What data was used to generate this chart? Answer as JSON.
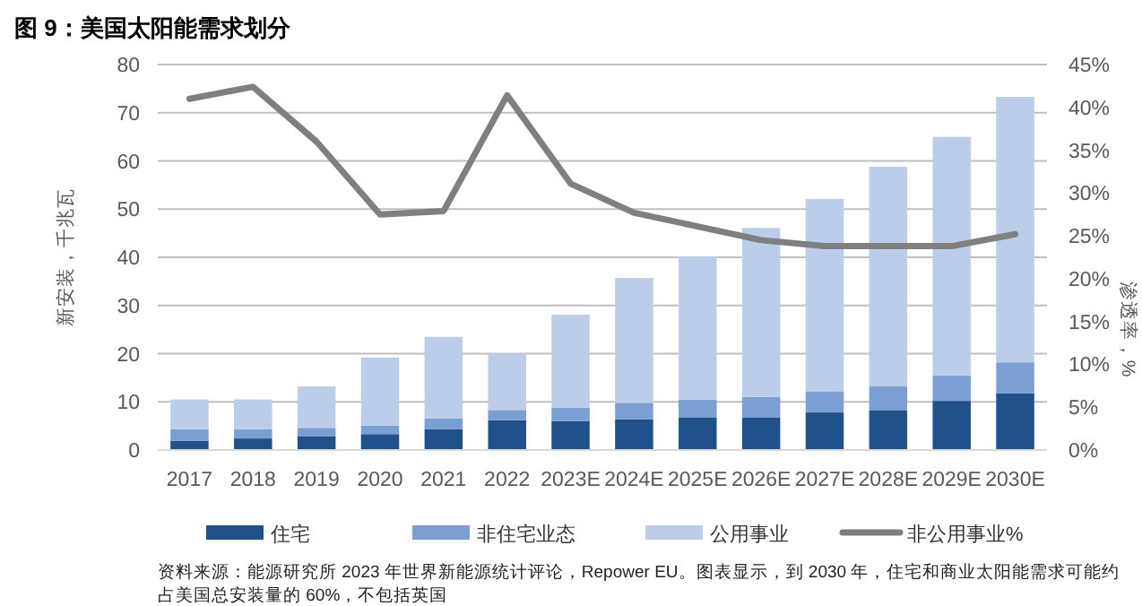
{
  "chart_data": {
    "type": "bar",
    "title": "图 9：美国太阳能需求划分",
    "ylabel": "新安装，千兆瓦",
    "y2label": "渗透率，%",
    "categories": [
      "2017",
      "2018",
      "2019",
      "2020",
      "2021",
      "2022",
      "2023E",
      "2024E",
      "2025E",
      "2026E",
      "2027E",
      "2028E",
      "2029E",
      "2030E"
    ],
    "stacked": true,
    "ylim": [
      0,
      80
    ],
    "yticks": [
      0,
      10,
      20,
      30,
      40,
      50,
      60,
      70,
      80
    ],
    "y2lim": [
      0,
      45
    ],
    "y2ticks": [
      {
        "value": 0,
        "label": "0%"
      },
      {
        "value": 5,
        "label": "5%"
      },
      {
        "value": 10,
        "label": "10%"
      },
      {
        "value": 15,
        "label": "15%"
      },
      {
        "value": 20,
        "label": "20%"
      },
      {
        "value": 25,
        "label": "25%"
      },
      {
        "value": 30,
        "label": "30%"
      },
      {
        "value": 35,
        "label": "35%"
      },
      {
        "value": 40,
        "label": "40%"
      },
      {
        "value": 45,
        "label": "45%"
      }
    ],
    "grid": "y",
    "legend": "bottom",
    "series": [
      {
        "name": "住宅",
        "color": "#21518b",
        "values": [
          1.9,
          2.4,
          2.9,
          3.3,
          4.3,
          6.2,
          6.0,
          6.4,
          6.8,
          6.8,
          7.8,
          8.3,
          10.2,
          11.8
        ]
      },
      {
        "name": "非住宅业态",
        "color": "#7c9fd3",
        "values": [
          2.4,
          1.9,
          1.7,
          1.8,
          2.3,
          2.1,
          2.8,
          3.4,
          3.7,
          4.2,
          4.4,
          4.9,
          5.3,
          6.4
        ]
      },
      {
        "name": "公用事业",
        "color": "#bccdea",
        "values": [
          6.2,
          6.2,
          8.6,
          14.1,
          16.9,
          11.7,
          19.3,
          25.9,
          29.7,
          35.1,
          39.9,
          45.6,
          49.5,
          55.1
        ]
      },
      {
        "name": "非公用事业%",
        "color": "#7f7f7f",
        "type": "line",
        "axis": "y2",
        "values": [
          41.0,
          42.4,
          36.0,
          27.5,
          27.9,
          41.4,
          31.1,
          27.7,
          26.1,
          24.5,
          23.8,
          23.8,
          23.8,
          25.2
        ]
      }
    ],
    "annotations": [
      "资料来源：能源研究所 2023 年世界新能源统计评论，Repower EU。图表显示，到 2030 年，住宅和商业太阳能需求可能约占美国总安装量的 60%，不包括英国"
    ]
  }
}
